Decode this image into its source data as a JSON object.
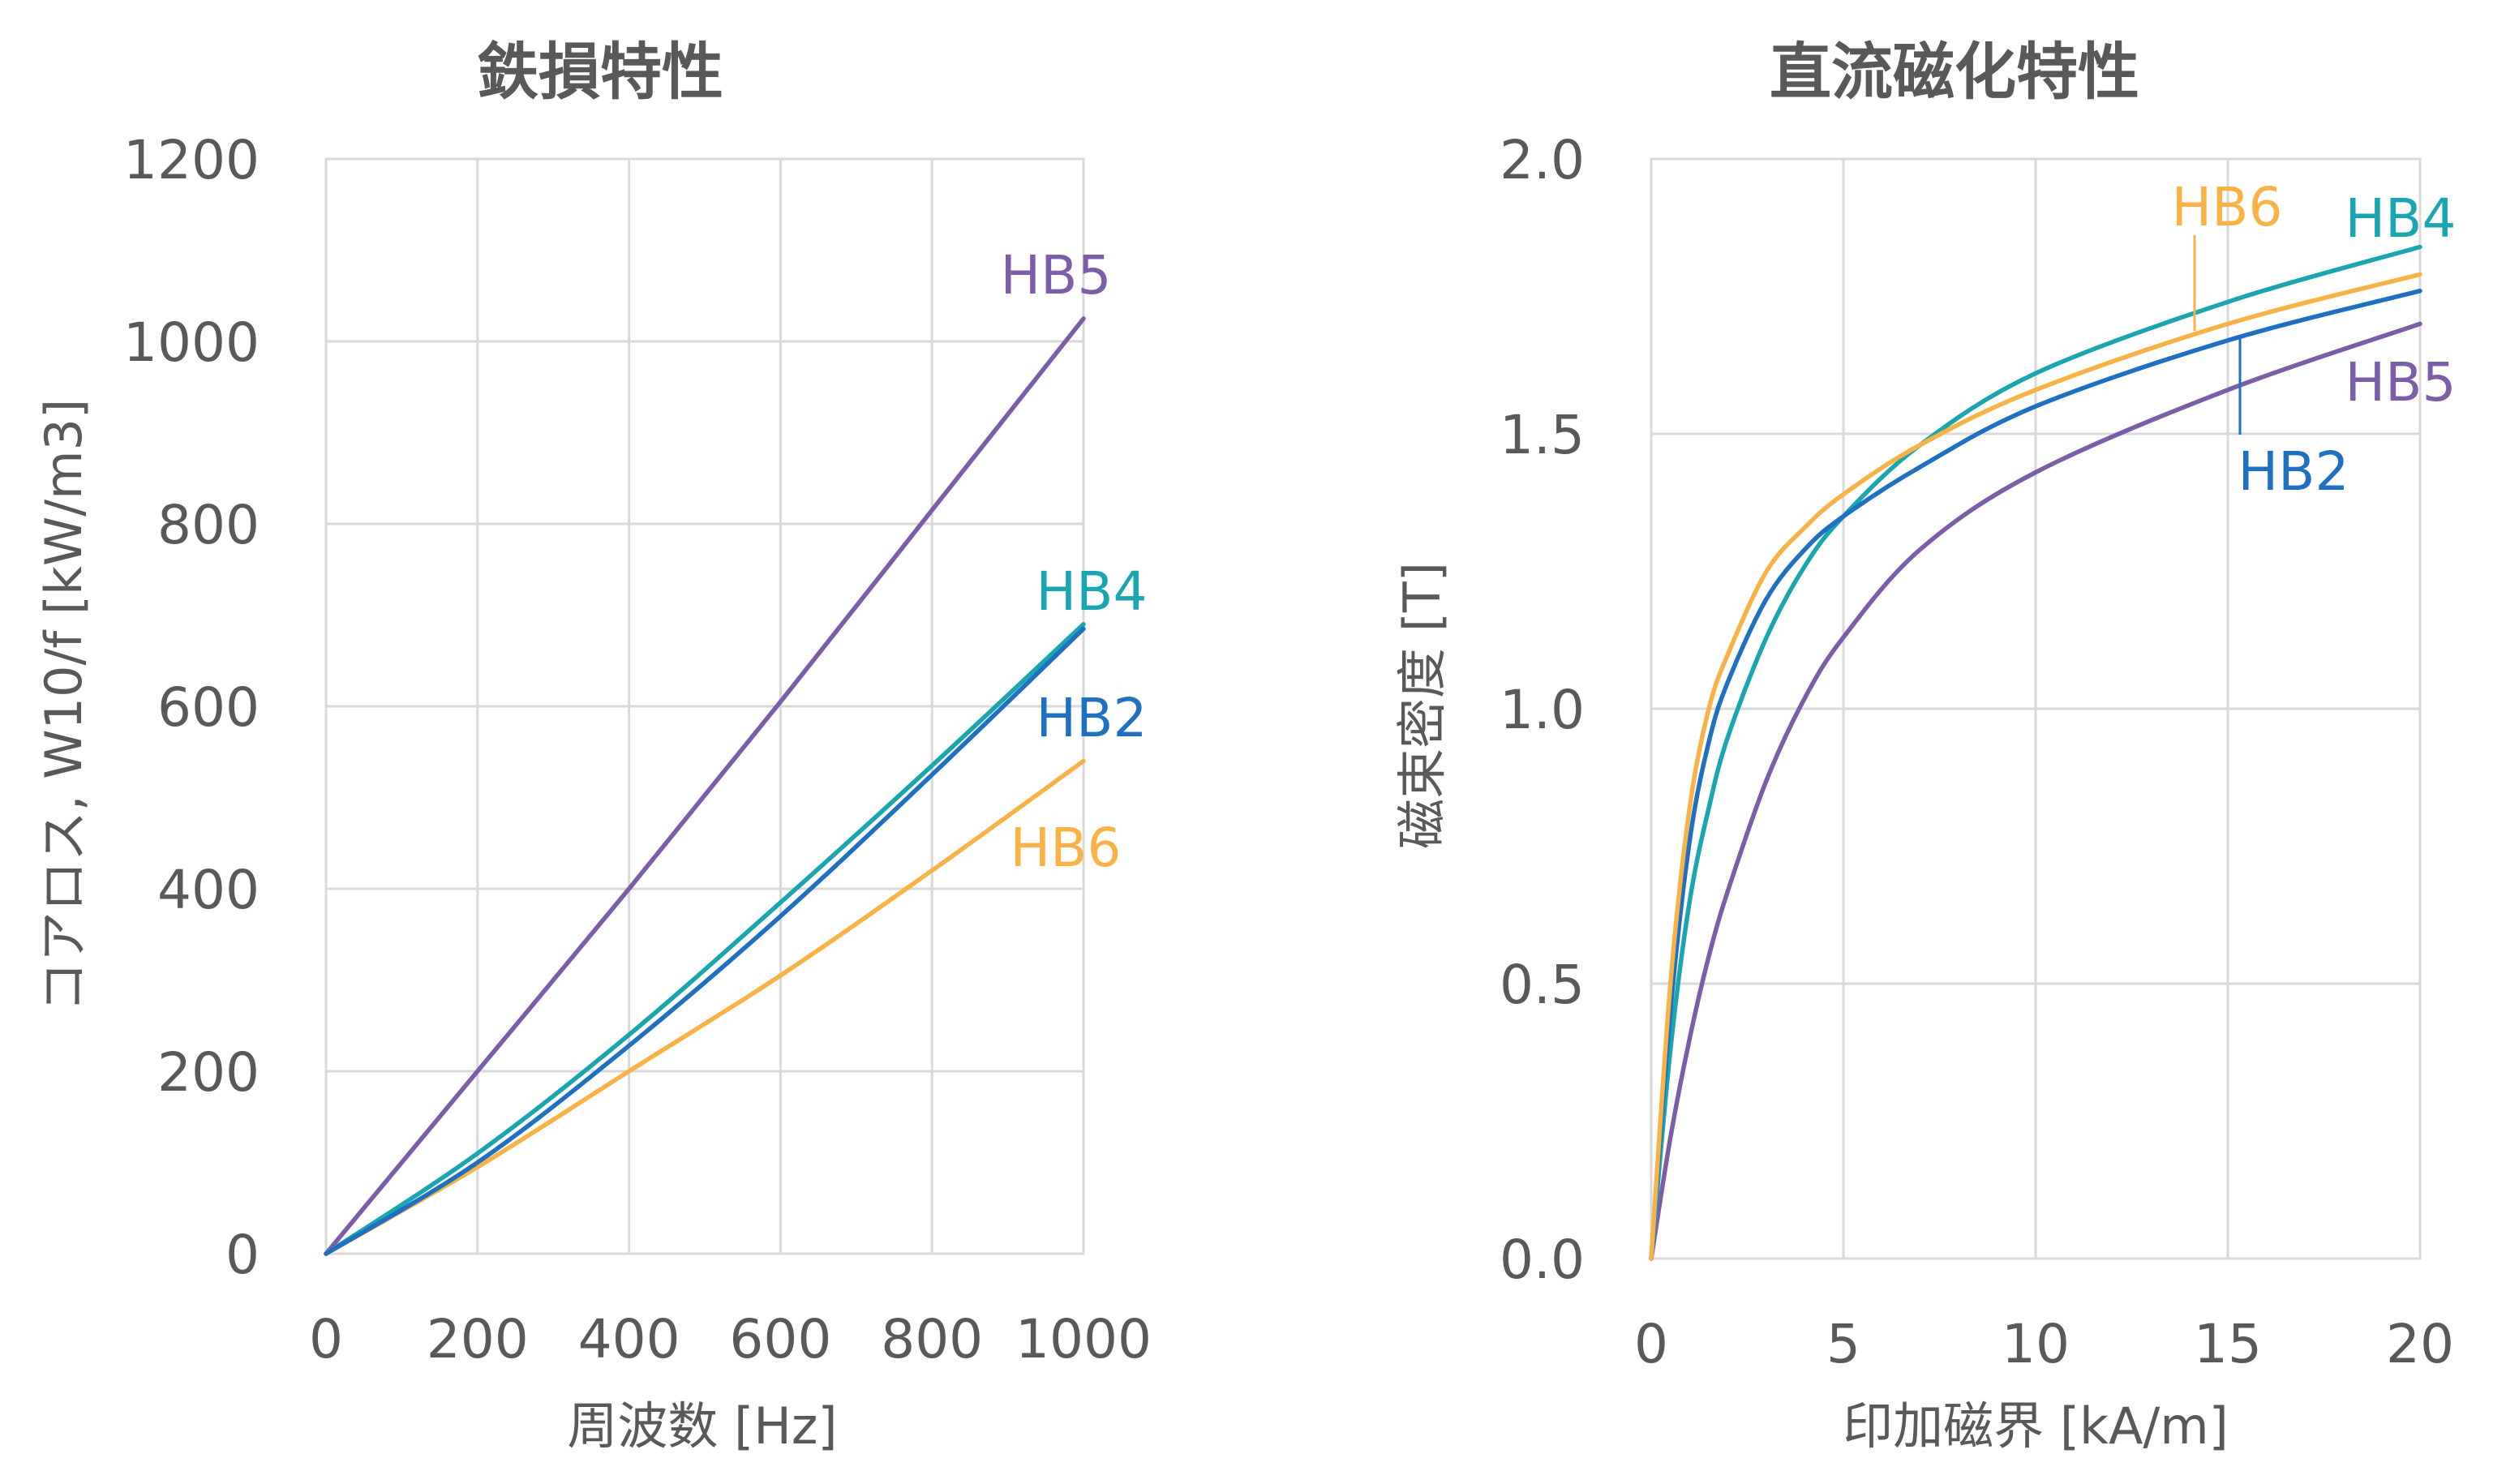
{
  "chart_data": [
    {
      "type": "line",
      "title": "鉄損特性",
      "xlabel": "周波数 [Hz]",
      "ylabel": "コアロス, W10/f [kW/m3]",
      "xlim": [
        0,
        1000
      ],
      "ylim": [
        0,
        1200
      ],
      "xticks": [
        0,
        200,
        400,
        600,
        800,
        1000
      ],
      "yticks": [
        0,
        200,
        400,
        600,
        800,
        1000,
        1200
      ],
      "xtick_labels": [
        "0",
        "200",
        "400",
        "600",
        "800",
        "1000"
      ],
      "ytick_labels": [
        "0",
        "200",
        "400",
        "600",
        "800",
        "1000",
        "1200"
      ],
      "grid": true,
      "series": [
        {
          "name": "HB5",
          "color": "#7b5ea7",
          "x": [
            0,
            200,
            400,
            600,
            800,
            1000
          ],
          "y": [
            0,
            200,
            400,
            605,
            815,
            1025
          ]
        },
        {
          "name": "HB4",
          "color": "#1aa6b0",
          "x": [
            0,
            200,
            400,
            600,
            800,
            1000
          ],
          "y": [
            0,
            110,
            240,
            385,
            535,
            690
          ]
        },
        {
          "name": "HB2",
          "color": "#1f70c1",
          "x": [
            0,
            200,
            400,
            600,
            800,
            1000
          ],
          "y": [
            0,
            100,
            228,
            370,
            525,
            685
          ]
        },
        {
          "name": "HB6",
          "color": "#f9b246",
          "x": [
            0,
            200,
            400,
            600,
            800,
            1000
          ],
          "y": [
            0,
            95,
            200,
            305,
            420,
            540
          ]
        }
      ]
    },
    {
      "type": "line",
      "title": "直流磁化特性",
      "xlabel": "印加磁界 [kA/m]",
      "ylabel": "磁束密度 [T]",
      "xlim": [
        0,
        20
      ],
      "ylim": [
        0,
        2.0
      ],
      "xticks": [
        0,
        5,
        10,
        15,
        20
      ],
      "yticks": [
        0,
        0.5,
        1.0,
        1.5,
        2.0
      ],
      "xtick_labels": [
        "0",
        "5",
        "10",
        "15",
        "20"
      ],
      "ytick_labels": [
        "0.0",
        "0.5",
        "1.0",
        "1.5",
        "2.0"
      ],
      "grid": true,
      "series": [
        {
          "name": "HB6",
          "color": "#f9b246",
          "x": [
            0,
            0.5,
            1,
            1.5,
            2,
            3,
            4,
            5,
            7,
            10,
            15,
            20
          ],
          "y": [
            0,
            0.5,
            0.82,
            1.0,
            1.1,
            1.25,
            1.33,
            1.39,
            1.48,
            1.58,
            1.7,
            1.79
          ]
        },
        {
          "name": "HB4",
          "color": "#1aa6b0",
          "x": [
            0,
            0.5,
            1,
            1.5,
            2,
            3,
            4,
            5,
            7,
            10,
            15,
            20
          ],
          "y": [
            0,
            0.38,
            0.65,
            0.82,
            0.95,
            1.13,
            1.26,
            1.35,
            1.48,
            1.61,
            1.74,
            1.84
          ]
        },
        {
          "name": "HB2",
          "color": "#1f70c1",
          "x": [
            0,
            0.5,
            1,
            1.5,
            2,
            3,
            4,
            5,
            7,
            10,
            15,
            20
          ],
          "y": [
            0,
            0.45,
            0.76,
            0.94,
            1.05,
            1.2,
            1.29,
            1.35,
            1.44,
            1.55,
            1.67,
            1.76
          ]
        },
        {
          "name": "HB5",
          "color": "#7b5ea7",
          "x": [
            0,
            0.5,
            1,
            1.5,
            2,
            3,
            4,
            5,
            7,
            10,
            15,
            20
          ],
          "y": [
            0,
            0.22,
            0.4,
            0.55,
            0.67,
            0.87,
            1.02,
            1.13,
            1.29,
            1.43,
            1.58,
            1.7
          ]
        }
      ]
    }
  ]
}
